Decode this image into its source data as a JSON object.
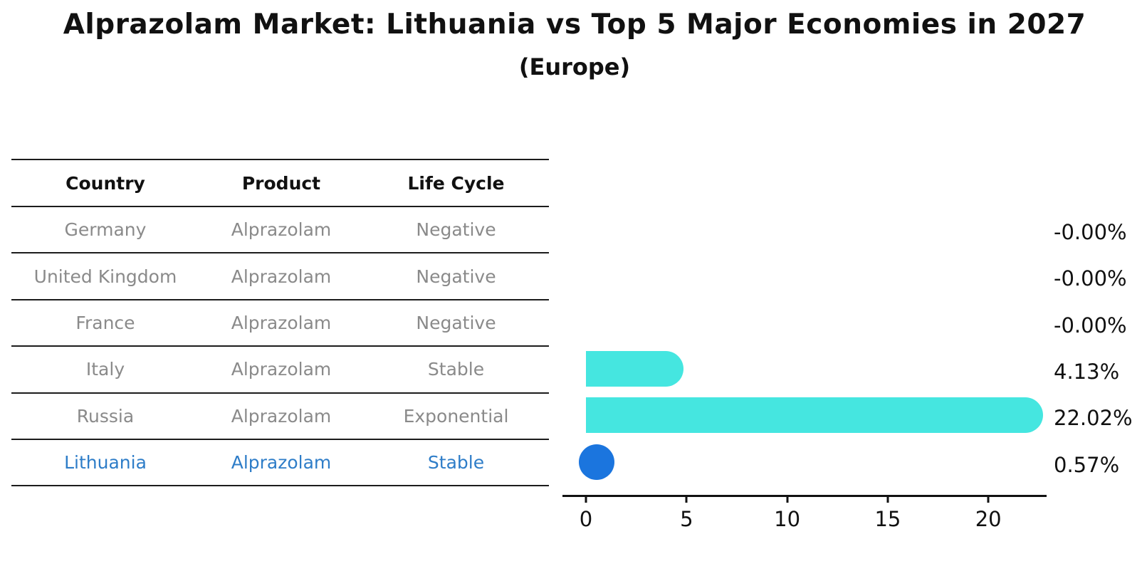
{
  "title": "Alprazolam Market: Lithuania vs Top 5 Major Economies in 2027",
  "subtitle": "(Europe)",
  "table": {
    "headers": [
      "Country",
      "Product",
      "Life Cycle"
    ],
    "rows": [
      {
        "country": "Germany",
        "product": "Alprazolam",
        "life_cycle": "Negative",
        "highlight": false
      },
      {
        "country": "United Kingdom",
        "product": "Alprazolam",
        "life_cycle": "Negative",
        "highlight": false
      },
      {
        "country": "France",
        "product": "Alprazolam",
        "life_cycle": "Negative",
        "highlight": false
      },
      {
        "country": "Italy",
        "product": "Alprazolam",
        "life_cycle": "Stable",
        "highlight": false
      },
      {
        "country": "Russia",
        "product": "Alprazolam",
        "life_cycle": "Exponential",
        "highlight": false
      },
      {
        "country": "Lithuania",
        "product": "Alprazolam",
        "life_cycle": "Stable",
        "highlight": true
      }
    ]
  },
  "chart_data": {
    "type": "bar",
    "orientation": "horizontal",
    "title": "Alprazolam Market: Lithuania vs Top 5 Major Economies in 2027",
    "subtitle": "(Europe)",
    "categories": [
      "Germany",
      "United Kingdom",
      "France",
      "Italy",
      "Russia",
      "Lithuania"
    ],
    "values": [
      -0.0,
      -0.0,
      -0.0,
      4.13,
      22.02,
      0.57
    ],
    "value_labels": [
      "-0.00%",
      "-0.00%",
      "-0.00%",
      "4.13%",
      "22.02%",
      "0.57%"
    ],
    "unit": "%",
    "x_ticks": [
      0,
      5,
      10,
      15,
      20
    ],
    "xlim": [
      -1.2,
      22.9
    ],
    "grid": false,
    "legend": false,
    "bar_color": "#45e6e0",
    "highlight_index": 5,
    "highlight_bar_color": "#1b75de"
  },
  "colors": {
    "background": "#ffffff",
    "bar_cyan": "#45e6e0",
    "bar_blue": "#1b75de",
    "highlight_text": "#2e7dc8",
    "muted_text": "#8a8a8a",
    "text": "#111111"
  }
}
